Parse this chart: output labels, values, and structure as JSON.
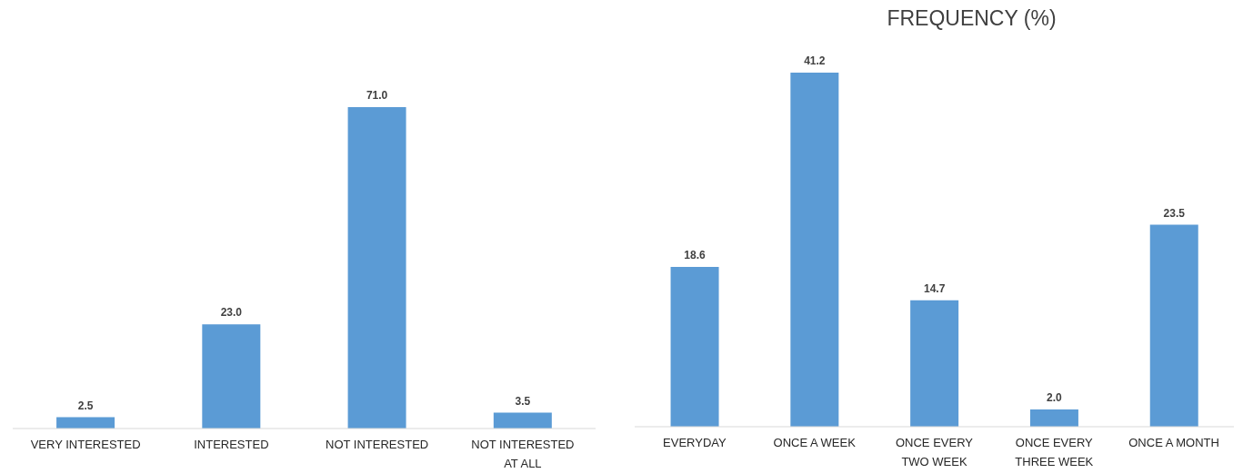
{
  "chart_data": [
    {
      "type": "bar",
      "categories": [
        "VERY INTERESTED",
        "INTERESTED",
        "NOT INTERESTED",
        "NOT INTERESTED AT ALL"
      ],
      "values": [
        2.5,
        23.0,
        71.0,
        3.5
      ],
      "value_labels": [
        "2.5",
        "23.0",
        "71.0",
        "3.5"
      ],
      "color": "#5b9bd5"
    },
    {
      "type": "bar",
      "title": "FREQUENCY (%)",
      "categories": [
        "EVERYDAY",
        "ONCE A WEEK",
        "ONCE EVERY TWO WEEK",
        "ONCE EVERY THREE WEEK",
        "ONCE A MONTH"
      ],
      "values": [
        18.6,
        41.2,
        14.7,
        2.0,
        23.5
      ],
      "value_labels": [
        "18.6",
        "41.2",
        "14.7",
        "2.0",
        "23.5"
      ],
      "color": "#5b9bd5"
    }
  ]
}
